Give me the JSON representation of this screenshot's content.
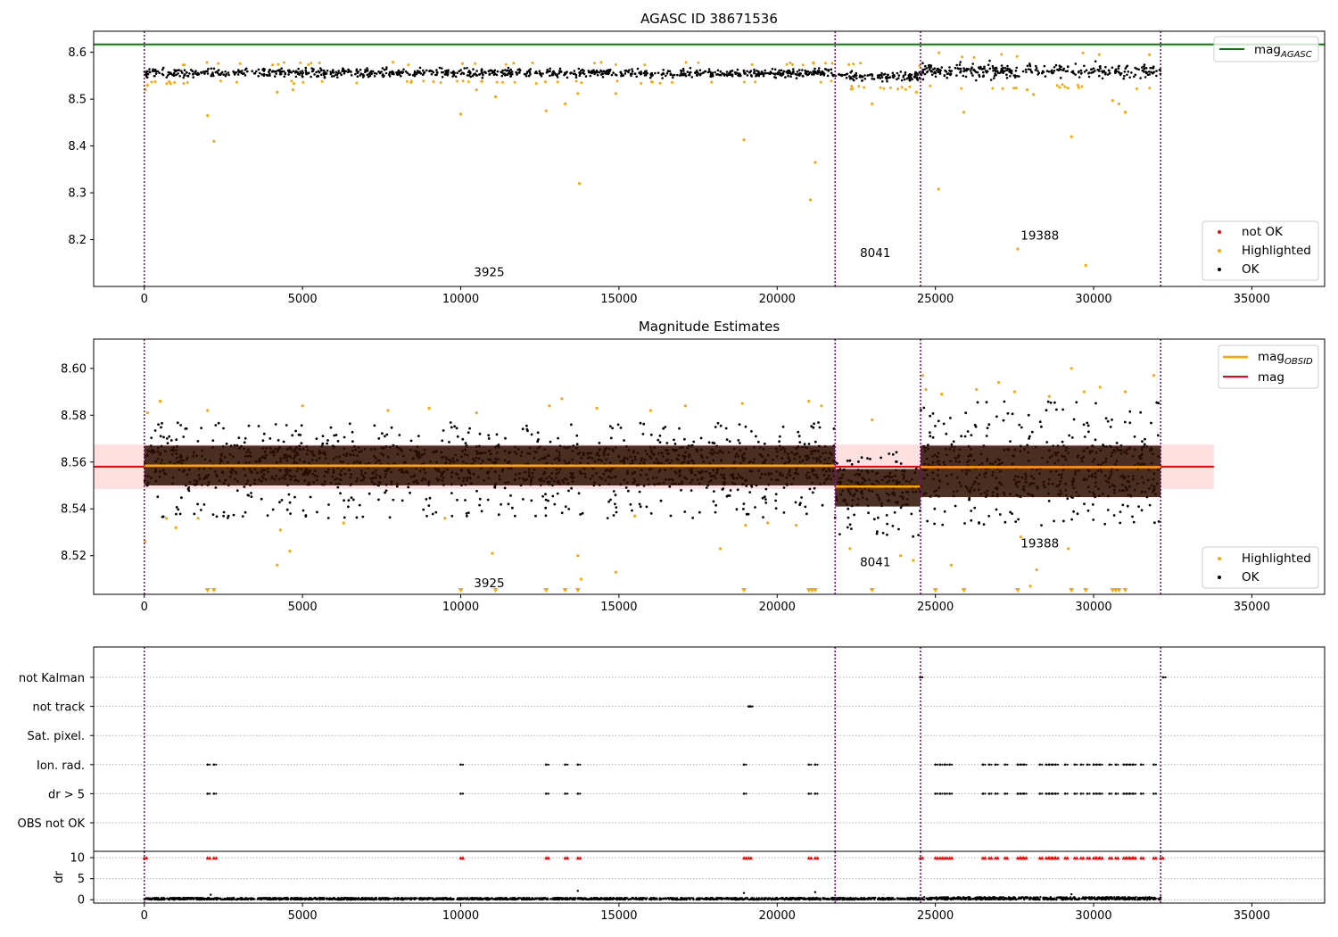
{
  "chart_data": [
    {
      "id": "top",
      "type": "scatter",
      "title": "AGASC ID 38671536",
      "xlim": [
        -1600,
        37300
      ],
      "ylim": [
        8.1,
        8.645
      ],
      "xticks": [
        0,
        5000,
        10000,
        15000,
        20000,
        25000,
        30000,
        35000
      ],
      "yticks": [
        8.2,
        8.3,
        8.4,
        8.5,
        8.6
      ],
      "ytick_labels": [
        "8.2",
        "8.3",
        "8.4",
        "8.5",
        "8.6"
      ],
      "obs_boundaries": [
        0,
        21830,
        24530,
        32120
      ],
      "obs_labels": [
        {
          "text": "3925",
          "x": 10900,
          "y": 8.122
        },
        {
          "text": "8041",
          "x": 23100,
          "y": 8.163
        },
        {
          "text": "19388",
          "x": 28300,
          "y": 8.2
        }
      ],
      "reference_line": {
        "name_main": "mag",
        "name_sub": "AGASC",
        "y": 8.617,
        "color": "#008000"
      },
      "bands": [
        {
          "x0": 0,
          "x1": 21830,
          "center": 8.556,
          "half": 0.016
        },
        {
          "x0": 21830,
          "x1": 24530,
          "center": 8.549,
          "half": 0.02
        },
        {
          "x0": 24530,
          "x1": 32120,
          "center": 8.56,
          "half": 0.027
        }
      ],
      "highlighted": [
        [
          30,
          8.52
        ],
        [
          100,
          8.53
        ],
        [
          2000,
          8.465
        ],
        [
          2200,
          8.41
        ],
        [
          4200,
          8.515
        ],
        [
          4700,
          8.52
        ],
        [
          10000,
          8.468
        ],
        [
          10500,
          8.52
        ],
        [
          11100,
          8.505
        ],
        [
          12700,
          8.475
        ],
        [
          13300,
          8.49
        ],
        [
          13700,
          8.512
        ],
        [
          13750,
          8.32
        ],
        [
          14900,
          8.512
        ],
        [
          18950,
          8.413
        ],
        [
          21050,
          8.285
        ],
        [
          21200,
          8.365
        ],
        [
          23000,
          8.49
        ],
        [
          24400,
          8.515
        ],
        [
          25100,
          8.308
        ],
        [
          25900,
          8.472
        ],
        [
          27600,
          8.18
        ],
        [
          28100,
          8.51
        ],
        [
          29300,
          8.42
        ],
        [
          29750,
          8.145
        ],
        [
          30600,
          8.497
        ],
        [
          30800,
          8.49
        ],
        [
          31000,
          8.472
        ],
        [
          27900,
          8.52
        ]
      ],
      "legend": [
        {
          "label": "not OK",
          "color": "#ff0000"
        },
        {
          "label": "Highlighted",
          "color": "#ffa500"
        },
        {
          "label": "OK",
          "color": "#000000"
        }
      ]
    },
    {
      "id": "middle",
      "type": "scatter",
      "title": "Magnitude Estimates",
      "xlim": [
        -1600,
        37300
      ],
      "ylim": [
        8.5035,
        8.6125
      ],
      "xticks": [
        0,
        5000,
        10000,
        15000,
        20000,
        25000,
        30000,
        35000
      ],
      "yticks": [
        8.52,
        8.54,
        8.56,
        8.58,
        8.6
      ],
      "ytick_labels": [
        "8.52",
        "8.54",
        "8.56",
        "8.58",
        "8.60"
      ],
      "obs_boundaries": [
        0,
        21830,
        24530,
        32120
      ],
      "obs_labels": [
        {
          "text": "3925",
          "x": 10900,
          "y": 8.5065
        },
        {
          "text": "8041",
          "x": 23100,
          "y": 8.5155
        },
        {
          "text": "19388",
          "x": 28300,
          "y": 8.5235
        }
      ],
      "mag": {
        "name": "mag",
        "value": 8.558,
        "std": 0.0095,
        "x0": -1600,
        "x1": 33800,
        "color": "#ff0000"
      },
      "mag_obsid": {
        "name_main": "mag",
        "name_sub": "OBSID",
        "color": "#ffa500",
        "segments": [
          {
            "x0": 0,
            "x1": 21830,
            "value": 8.5585
          },
          {
            "x0": 21830,
            "x1": 24530,
            "value": 8.5495
          },
          {
            "x0": 24530,
            "x1": 32120,
            "value": 8.5578
          }
        ]
      },
      "bands": [
        {
          "x0": 0,
          "x1": 21830,
          "lo": 8.536,
          "hi": 8.577,
          "dlo": 8.55,
          "dhi": 8.567
        },
        {
          "x0": 21830,
          "x1": 24530,
          "lo": 8.527,
          "hi": 8.565,
          "dlo": 8.541,
          "dhi": 8.557
        },
        {
          "x0": 24530,
          "x1": 32120,
          "lo": 8.533,
          "hi": 8.586,
          "dlo": 8.545,
          "dhi": 8.567
        }
      ],
      "highlighted": [
        [
          30,
          8.526
        ],
        [
          100,
          8.581
        ],
        [
          500,
          8.586
        ],
        [
          700,
          8.536
        ],
        [
          1000,
          8.532
        ],
        [
          1700,
          8.536
        ],
        [
          2000,
          8.582
        ],
        [
          4200,
          8.516
        ],
        [
          4300,
          8.531
        ],
        [
          4600,
          8.522
        ],
        [
          5000,
          8.584
        ],
        [
          6300,
          8.534
        ],
        [
          7700,
          8.582
        ],
        [
          9000,
          8.583
        ],
        [
          9500,
          8.536
        ],
        [
          10500,
          8.581
        ],
        [
          11000,
          8.521
        ],
        [
          12800,
          8.584
        ],
        [
          13200,
          8.587
        ],
        [
          13700,
          8.52
        ],
        [
          13800,
          8.51
        ],
        [
          14900,
          8.513
        ],
        [
          14300,
          8.583
        ],
        [
          15500,
          8.537
        ],
        [
          16000,
          8.582
        ],
        [
          17100,
          8.584
        ],
        [
          18200,
          8.523
        ],
        [
          18900,
          8.585
        ],
        [
          19000,
          8.533
        ],
        [
          19700,
          8.534
        ],
        [
          20600,
          8.533
        ],
        [
          21000,
          8.586
        ],
        [
          21400,
          8.584
        ],
        [
          22300,
          8.523
        ],
        [
          23000,
          8.578
        ],
        [
          23900,
          8.52
        ],
        [
          24300,
          8.518
        ],
        [
          24600,
          8.597
        ],
        [
          24700,
          8.591
        ],
        [
          25200,
          8.589
        ],
        [
          25500,
          8.516
        ],
        [
          26300,
          8.591
        ],
        [
          27000,
          8.594
        ],
        [
          27500,
          8.59
        ],
        [
          28000,
          8.507
        ],
        [
          28200,
          8.514
        ],
        [
          28600,
          8.588
        ],
        [
          29200,
          8.523
        ],
        [
          29300,
          8.6
        ],
        [
          29700,
          8.59
        ],
        [
          30200,
          8.592
        ],
        [
          31000,
          8.59
        ],
        [
          31900,
          8.597
        ],
        [
          27700,
          8.528
        ]
      ],
      "below_range_markers": [
        2000,
        2200,
        10000,
        11100,
        12700,
        13300,
        13700,
        18950,
        21000,
        21100,
        21200,
        23000,
        25000,
        25900,
        27600,
        29300,
        29750,
        30600,
        30700,
        30800,
        31000
      ],
      "legend": [
        {
          "label": "Highlighted",
          "color": "#ffa500"
        },
        {
          "label": "OK",
          "color": "#000000"
        }
      ]
    },
    {
      "id": "flags",
      "type": "scatter",
      "xlim": [
        -1600,
        37300
      ],
      "categories": [
        "not Kalman",
        "not track",
        "Sat. pixel.",
        "Ion. rad.",
        "dr > 5",
        "OBS not OK"
      ],
      "obs_boundaries": [
        0,
        21830,
        24530,
        32120
      ],
      "flag_points": {
        "not track": [
          19100,
          19150
        ],
        "not Kalman": [
          24520,
          32200
        ],
        "Ion. rad.": [
          2000,
          2200,
          10000,
          12700,
          13300,
          13700,
          18950,
          21000,
          21200,
          25000,
          25150,
          25300,
          25450,
          26500,
          26700,
          26900,
          27200,
          27600,
          27700,
          27800,
          28300,
          28500,
          28600,
          28700,
          28800,
          29100,
          29400,
          29600,
          29800,
          30000,
          30100,
          30200,
          30500,
          30700,
          30950,
          31050,
          31150,
          31250,
          31500,
          31900
        ],
        "dr > 5": [
          2000,
          2200,
          10000,
          12700,
          13300,
          13700,
          18950,
          21000,
          21200,
          25000,
          25150,
          25300,
          25450,
          26500,
          26700,
          26900,
          27200,
          27600,
          27700,
          27800,
          28300,
          28500,
          28600,
          28700,
          28800,
          29100,
          29400,
          29600,
          29800,
          30000,
          30100,
          30200,
          30500,
          30700,
          30950,
          31050,
          31150,
          31250,
          31500,
          31900
        ]
      }
    },
    {
      "id": "dr",
      "type": "scatter",
      "ylabel": "dr",
      "xlim": [
        -1600,
        37300
      ],
      "ylim": [
        -0.8,
        11.5
      ],
      "xticks": [
        0,
        5000,
        10000,
        15000,
        20000,
        25000,
        30000,
        35000
      ],
      "yticks": [
        0,
        5,
        10
      ],
      "obs_boundaries": [
        0,
        21830,
        24530,
        32120
      ],
      "clipped_markers": [
        0,
        2000,
        2200,
        10000,
        12700,
        13300,
        13700,
        18950,
        19100,
        21000,
        21200,
        24520,
        25000,
        25150,
        25300,
        25450,
        26500,
        26700,
        26900,
        27200,
        27600,
        27700,
        27800,
        28300,
        28500,
        28600,
        28700,
        28800,
        29100,
        29400,
        29600,
        29800,
        30000,
        30100,
        30200,
        30500,
        30700,
        30950,
        31050,
        31150,
        31250,
        31500,
        31900,
        32120
      ],
      "outliers": [
        [
          2100,
          1.2
        ],
        [
          13700,
          2.1
        ],
        [
          18950,
          1.6
        ],
        [
          21200,
          1.8
        ],
        [
          29300,
          1.3
        ]
      ],
      "band": {
        "lo": 0,
        "hi": 0.45
      }
    }
  ]
}
